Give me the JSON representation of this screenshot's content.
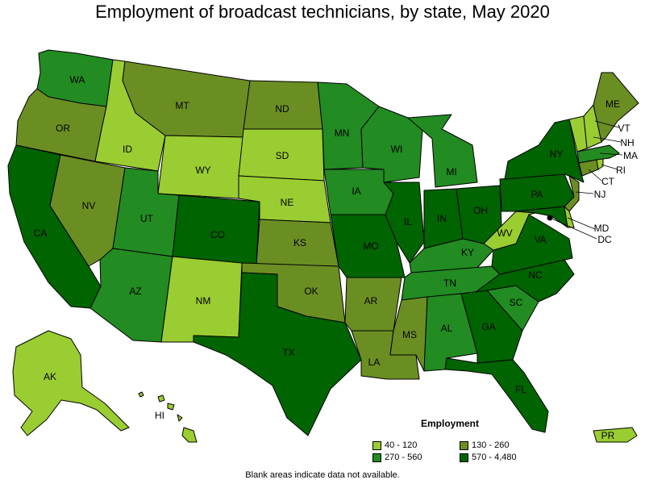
{
  "title": "Employment of broadcast technicians, by state, May 2020",
  "legend": {
    "title": "Employment",
    "bins": [
      {
        "label": "40 - 120",
        "color": "#9acd32"
      },
      {
        "label": "130 - 260",
        "color": "#6b8e23"
      },
      {
        "label": "270 - 560",
        "color": "#228b22"
      },
      {
        "label": "570 - 4,480",
        "color": "#006400"
      }
    ]
  },
  "note": "Blank areas indicate data not available.",
  "states": {
    "WA": 2,
    "OR": 1,
    "CA": 3,
    "ID": 0,
    "NV": 1,
    "MT": 1,
    "WY": 0,
    "UT": 2,
    "AZ": 2,
    "CO": 3,
    "NM": 0,
    "ND": 1,
    "SD": 0,
    "NE": 0,
    "KS": 1,
    "OK": 1,
    "TX": 3,
    "MN": 2,
    "IA": 2,
    "MO": 3,
    "AR": 1,
    "LA": 1,
    "WI": 2,
    "IL": 3,
    "MI": 2,
    "IN": 3,
    "OH": 3,
    "KY": 2,
    "TN": 2,
    "MS": 1,
    "AL": 2,
    "GA": 3,
    "FL": 3,
    "SC": 2,
    "NC": 3,
    "VA": 3,
    "WV": 0,
    "PA": 3,
    "NY": 3,
    "VT": 0,
    "NH": 0,
    "ME": 1,
    "MA": 2,
    "RI": 0,
    "CT": 1,
    "NJ": 1,
    "DE": 0,
    "MD": 3,
    "DC": 3,
    "AK": 0,
    "HI": 0,
    "PR": 0
  },
  "state_labels": [
    "WA",
    "OR",
    "CA",
    "ID",
    "NV",
    "MT",
    "WY",
    "UT",
    "AZ",
    "CO",
    "NM",
    "ND",
    "SD",
    "NE",
    "KS",
    "OK",
    "TX",
    "MN",
    "IA",
    "MO",
    "AR",
    "LA",
    "WI",
    "IL",
    "MI",
    "IN",
    "OH",
    "KY",
    "TN",
    "MS",
    "AL",
    "GA",
    "FL",
    "SC",
    "NC",
    "VA",
    "WV",
    "PA",
    "NY",
    "ME",
    "VT",
    "NH",
    "MA",
    "RI",
    "CT",
    "NJ",
    "MD",
    "DC",
    "AK",
    "HI",
    "PR"
  ]
}
